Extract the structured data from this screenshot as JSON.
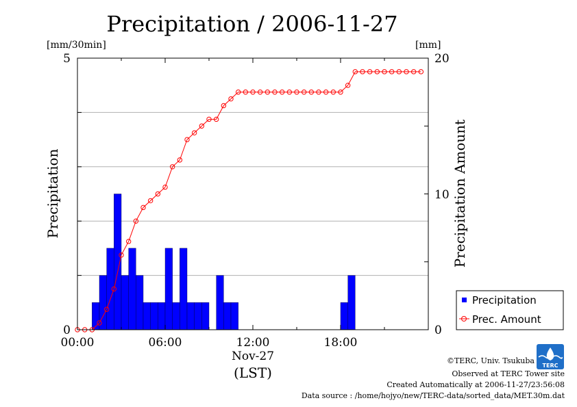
{
  "chart_data": {
    "type": "bar",
    "title": "Precipitation / 2006-11-27",
    "left_axis": {
      "label": "Precipitation",
      "unit": "[mm/30min]",
      "range": [
        0,
        5
      ],
      "ticks": [
        "0",
        "5"
      ]
    },
    "right_axis": {
      "label": "Precipitation Amount",
      "unit": "[mm]",
      "range": [
        0,
        20
      ],
      "ticks": [
        "0",
        "10",
        "20"
      ]
    },
    "x_axis": {
      "range_hours": [
        0,
        24
      ],
      "ticks": [
        {
          "hour": 0,
          "label": "00:00"
        },
        {
          "hour": 6,
          "label": "06:00"
        },
        {
          "hour": 12,
          "label": "12:00"
        },
        {
          "hour": 18,
          "label": "18:00"
        }
      ],
      "date_label": "Nov-27",
      "timezone_label": "(LST)"
    },
    "grid": "horizontal",
    "legend_position": "right",
    "series": [
      {
        "name": "Precipitation",
        "type": "bar",
        "color": "#0000ff",
        "values": [
          0,
          0,
          0.5,
          1.0,
          1.5,
          2.5,
          1.0,
          1.5,
          1.0,
          0.5,
          0.5,
          0.5,
          1.5,
          0.5,
          1.5,
          0.5,
          0.5,
          0.5,
          0,
          1.0,
          0.5,
          0.5,
          0,
          0,
          0,
          0,
          0,
          0,
          0,
          0,
          0,
          0,
          0,
          0,
          0,
          0,
          0.5,
          1.0,
          0,
          0,
          0,
          0,
          0,
          0,
          0,
          0,
          0,
          0
        ]
      },
      {
        "name": "Prec. Amount",
        "type": "line",
        "color": "#ff0000",
        "values": [
          0,
          0,
          0,
          0.5,
          1.5,
          3.0,
          5.5,
          6.5,
          8.0,
          9.0,
          9.5,
          10.0,
          10.5,
          12.0,
          12.5,
          14.0,
          14.5,
          15.0,
          15.5,
          15.5,
          16.5,
          17.0,
          17.5,
          17.5,
          17.5,
          17.5,
          17.5,
          17.5,
          17.5,
          17.5,
          17.5,
          17.5,
          17.5,
          17.5,
          17.5,
          17.5,
          17.5,
          18.0,
          19.0,
          19.0,
          19.0,
          19.0,
          19.0,
          19.0,
          19.0,
          19.0,
          19.0,
          19.0
        ]
      }
    ],
    "legend": [
      "Precipitation",
      "Prec. Amount"
    ]
  },
  "footer": {
    "copyright": "©TERC, Univ. Tsukuba",
    "observed": "Observed at TERC Tower site",
    "created": "Created Automatically at 2006-11-27/23:56:08",
    "source": "Data source : /home/hojyo/new/TERC-data/sorted_data/MET.30m.dat"
  },
  "logo": {
    "text": "TERC"
  }
}
